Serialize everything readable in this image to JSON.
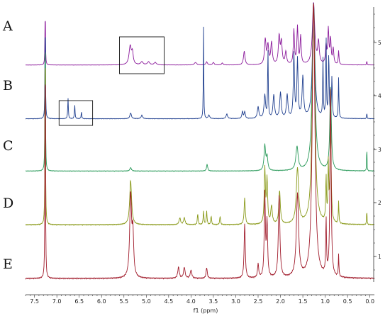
{
  "chart_data": {
    "type": "line",
    "title": "",
    "xlabel": "f1 (ppm)",
    "ylabel": "",
    "x_reversed": true,
    "xlim": [
      7.7,
      -0.1
    ],
    "x_ticks": [
      7.5,
      7.0,
      6.5,
      6.0,
      5.5,
      5.0,
      4.5,
      4.0,
      3.5,
      3.0,
      2.5,
      2.0,
      1.5,
      1.0,
      0.5,
      0.0
    ],
    "x_tick_labels": [
      "7.5",
      "7.0",
      "6.5",
      "6.0",
      "5.5",
      "5.0",
      "4.5",
      "4.0",
      "3.5",
      "3.0",
      "2.5",
      "2.0",
      "1.5",
      "1.0",
      "0.5",
      "0.0"
    ],
    "right_axis_labels": [
      "5",
      "4",
      "3",
      "2",
      "1"
    ],
    "highlight_boxes": [
      {
        "spectrum": "A",
        "ppm_range": [
          5.6,
          4.6
        ]
      },
      {
        "spectrum": "B",
        "ppm_range": [
          6.95,
          6.2
        ]
      }
    ],
    "series": [
      {
        "panel": "A",
        "color": "#8b1a9b",
        "peaks": [
          {
            "ppm": 7.26,
            "height": 1.0,
            "width": 0.006
          },
          {
            "ppm": 5.36,
            "height": 0.3,
            "width": 0.03
          },
          {
            "ppm": 5.31,
            "height": 0.18,
            "width": 0.02
          },
          {
            "ppm": 5.1,
            "height": 0.05,
            "width": 0.03
          },
          {
            "ppm": 4.95,
            "height": 0.05,
            "width": 0.03
          },
          {
            "ppm": 4.8,
            "height": 0.04,
            "width": 0.03
          },
          {
            "ppm": 3.9,
            "height": 0.04,
            "width": 0.03
          },
          {
            "ppm": 3.65,
            "height": 0.05,
            "width": 0.02
          },
          {
            "ppm": 3.5,
            "height": 0.04,
            "width": 0.02
          },
          {
            "ppm": 3.3,
            "height": 0.03,
            "width": 0.02
          },
          {
            "ppm": 2.81,
            "height": 0.22,
            "width": 0.02
          },
          {
            "ppm": 2.34,
            "height": 0.4,
            "width": 0.02
          },
          {
            "ppm": 2.28,
            "height": 0.3,
            "width": 0.02
          },
          {
            "ppm": 2.2,
            "height": 0.35,
            "width": 0.02
          },
          {
            "ppm": 2.03,
            "height": 0.45,
            "width": 0.02
          },
          {
            "ppm": 1.98,
            "height": 0.35,
            "width": 0.02
          },
          {
            "ppm": 1.88,
            "height": 0.2,
            "width": 0.02
          },
          {
            "ppm": 1.7,
            "height": 0.55,
            "width": 0.015
          },
          {
            "ppm": 1.62,
            "height": 0.6,
            "width": 0.015
          },
          {
            "ppm": 1.55,
            "height": 0.45,
            "width": 0.015
          },
          {
            "ppm": 1.26,
            "height": 1.0,
            "width": 0.03
          },
          {
            "ppm": 1.15,
            "height": 0.35,
            "width": 0.02
          },
          {
            "ppm": 0.98,
            "height": 0.3,
            "width": 0.015
          },
          {
            "ppm": 0.93,
            "height": 0.55,
            "width": 0.015
          },
          {
            "ppm": 0.88,
            "height": 0.4,
            "width": 0.015
          },
          {
            "ppm": 0.82,
            "height": 0.25,
            "width": 0.015
          },
          {
            "ppm": 0.7,
            "height": 0.22,
            "width": 0.01
          },
          {
            "ppm": 0.07,
            "height": 0.08,
            "width": 0.005
          }
        ]
      },
      {
        "panel": "B",
        "color": "#1f3f8f",
        "peaks": [
          {
            "ppm": 7.26,
            "height": 1.0,
            "width": 0.006
          },
          {
            "ppm": 6.75,
            "height": 0.18,
            "width": 0.008
          },
          {
            "ppm": 6.6,
            "height": 0.12,
            "width": 0.008
          },
          {
            "ppm": 6.45,
            "height": 0.06,
            "width": 0.008
          },
          {
            "ppm": 5.35,
            "height": 0.05,
            "width": 0.02
          },
          {
            "ppm": 5.1,
            "height": 0.03,
            "width": 0.02
          },
          {
            "ppm": 3.72,
            "height": 0.8,
            "width": 0.006
          },
          {
            "ppm": 3.6,
            "height": 0.03,
            "width": 0.02
          },
          {
            "ppm": 3.2,
            "height": 0.04,
            "width": 0.02
          },
          {
            "ppm": 2.85,
            "height": 0.06,
            "width": 0.015
          },
          {
            "ppm": 2.8,
            "height": 0.06,
            "width": 0.015
          },
          {
            "ppm": 2.5,
            "height": 0.1,
            "width": 0.02
          },
          {
            "ppm": 2.35,
            "height": 0.2,
            "width": 0.02
          },
          {
            "ppm": 2.28,
            "height": 0.6,
            "width": 0.008
          },
          {
            "ppm": 2.15,
            "height": 0.2,
            "width": 0.02
          },
          {
            "ppm": 2.0,
            "height": 0.22,
            "width": 0.02
          },
          {
            "ppm": 1.85,
            "height": 0.2,
            "width": 0.02
          },
          {
            "ppm": 1.7,
            "height": 0.55,
            "width": 0.015
          },
          {
            "ppm": 1.62,
            "height": 0.5,
            "width": 0.015
          },
          {
            "ppm": 1.5,
            "height": 0.35,
            "width": 0.02
          },
          {
            "ppm": 1.26,
            "height": 1.0,
            "width": 0.03
          },
          {
            "ppm": 1.05,
            "height": 0.5,
            "width": 0.008
          },
          {
            "ppm": 0.98,
            "height": 0.7,
            "width": 0.008
          },
          {
            "ppm": 0.92,
            "height": 0.55,
            "width": 0.01
          },
          {
            "ppm": 0.85,
            "height": 0.35,
            "width": 0.01
          },
          {
            "ppm": 0.7,
            "height": 0.35,
            "width": 0.008
          },
          {
            "ppm": 0.07,
            "height": 0.06,
            "width": 0.005
          }
        ]
      },
      {
        "panel": "C",
        "color": "#2a9a5a",
        "peaks": [
          {
            "ppm": 7.26,
            "height": 1.0,
            "width": 0.006
          },
          {
            "ppm": 5.35,
            "height": 0.02,
            "width": 0.02
          },
          {
            "ppm": 3.64,
            "height": 0.04,
            "width": 0.015
          },
          {
            "ppm": 2.35,
            "height": 0.15,
            "width": 0.02
          },
          {
            "ppm": 2.3,
            "height": 0.08,
            "width": 0.02
          },
          {
            "ppm": 1.63,
            "height": 0.14,
            "width": 0.03
          },
          {
            "ppm": 1.26,
            "height": 1.0,
            "width": 0.035
          },
          {
            "ppm": 0.88,
            "height": 0.5,
            "width": 0.02
          },
          {
            "ppm": 0.07,
            "height": 0.2,
            "width": 0.004
          }
        ]
      },
      {
        "panel": "D",
        "color": "#8a9a1a",
        "peaks": [
          {
            "ppm": 7.26,
            "height": 1.0,
            "width": 0.006
          },
          {
            "ppm": 5.35,
            "height": 0.2,
            "width": 0.025
          },
          {
            "ppm": 4.25,
            "height": 0.03,
            "width": 0.02
          },
          {
            "ppm": 4.15,
            "height": 0.03,
            "width": 0.02
          },
          {
            "ppm": 3.85,
            "height": 0.05,
            "width": 0.01
          },
          {
            "ppm": 3.72,
            "height": 0.06,
            "width": 0.01
          },
          {
            "ppm": 3.65,
            "height": 0.06,
            "width": 0.01
          },
          {
            "ppm": 3.55,
            "height": 0.04,
            "width": 0.01
          },
          {
            "ppm": 3.35,
            "height": 0.04,
            "width": 0.01
          },
          {
            "ppm": 2.8,
            "height": 0.12,
            "width": 0.015
          },
          {
            "ppm": 2.35,
            "height": 0.25,
            "width": 0.015
          },
          {
            "ppm": 2.3,
            "height": 0.2,
            "width": 0.015
          },
          {
            "ppm": 2.2,
            "height": 0.08,
            "width": 0.02
          },
          {
            "ppm": 2.02,
            "height": 0.15,
            "width": 0.02
          },
          {
            "ppm": 1.62,
            "height": 0.25,
            "width": 0.03
          },
          {
            "ppm": 1.26,
            "height": 1.0,
            "width": 0.035
          },
          {
            "ppm": 0.98,
            "height": 0.2,
            "width": 0.01
          },
          {
            "ppm": 0.93,
            "height": 0.25,
            "width": 0.01
          },
          {
            "ppm": 0.88,
            "height": 0.45,
            "width": 0.015
          },
          {
            "ppm": 0.7,
            "height": 0.1,
            "width": 0.008
          },
          {
            "ppm": 0.07,
            "height": 0.08,
            "width": 0.005
          }
        ]
      },
      {
        "panel": "E",
        "color": "#a01a2a",
        "peaks": [
          {
            "ppm": 7.26,
            "height": 1.0,
            "width": 0.006
          },
          {
            "ppm": 5.35,
            "height": 0.3,
            "width": 0.025
          },
          {
            "ppm": 5.3,
            "height": 0.15,
            "width": 0.02
          },
          {
            "ppm": 4.28,
            "height": 0.04,
            "width": 0.02
          },
          {
            "ppm": 4.15,
            "height": 0.04,
            "width": 0.02
          },
          {
            "ppm": 4.0,
            "height": 0.03,
            "width": 0.02
          },
          {
            "ppm": 3.65,
            "height": 0.04,
            "width": 0.015
          },
          {
            "ppm": 2.8,
            "height": 0.2,
            "width": 0.015
          },
          {
            "ppm": 2.5,
            "height": 0.05,
            "width": 0.015
          },
          {
            "ppm": 2.35,
            "height": 0.3,
            "width": 0.015
          },
          {
            "ppm": 2.3,
            "height": 0.2,
            "width": 0.015
          },
          {
            "ppm": 2.03,
            "height": 0.3,
            "width": 0.02
          },
          {
            "ppm": 1.62,
            "height": 0.3,
            "width": 0.03
          },
          {
            "ppm": 1.26,
            "height": 1.0,
            "width": 0.035
          },
          {
            "ppm": 0.98,
            "height": 0.2,
            "width": 0.01
          },
          {
            "ppm": 0.88,
            "height": 0.7,
            "width": 0.015
          },
          {
            "ppm": 0.7,
            "height": 0.08,
            "width": 0.008
          }
        ]
      }
    ]
  }
}
